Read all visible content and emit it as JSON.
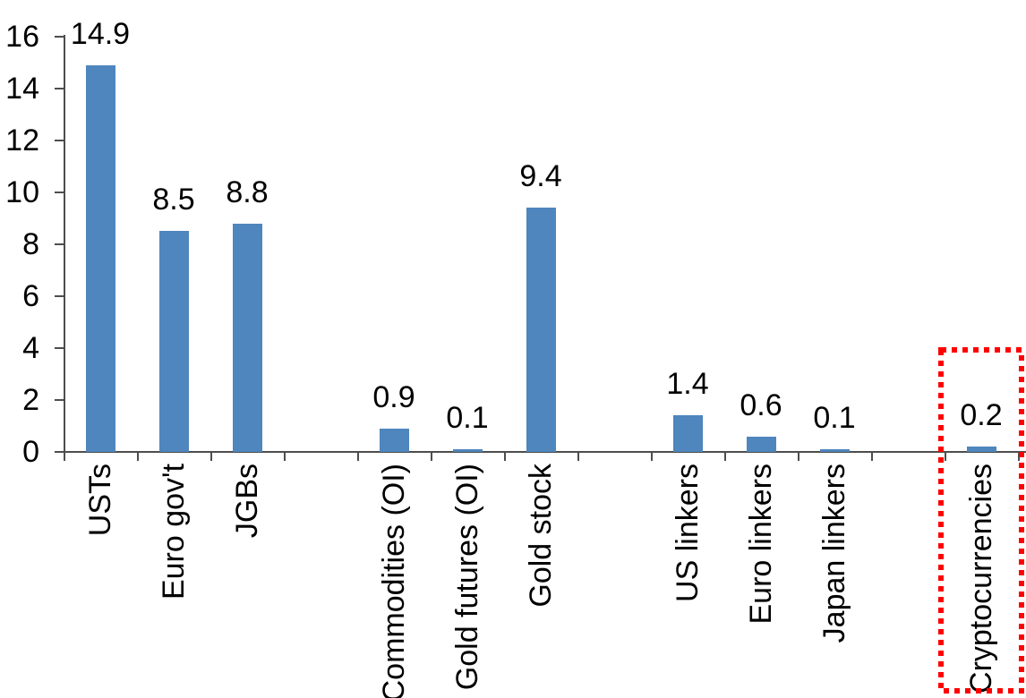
{
  "chart_data": {
    "type": "bar",
    "title": "",
    "xlabel": "",
    "ylabel": "",
    "categories": [
      "USTs",
      "Euro gov't",
      "JGBs",
      "",
      "Commodities (OI)",
      "Gold futures (OI)",
      "Gold stock",
      "",
      "US linkers",
      "Euro linkers",
      "Japan linkers",
      "",
      "Cryptocurrencies"
    ],
    "values": [
      14.9,
      8.5,
      8.8,
      null,
      0.9,
      0.1,
      9.4,
      null,
      1.4,
      0.6,
      0.1,
      null,
      0.2
    ],
    "data_labels": [
      "14.9",
      "8.5",
      "8.8",
      "",
      "0.9",
      "0.1",
      "9.4",
      "",
      "1.4",
      "0.6",
      "0.1",
      "",
      "0.2"
    ],
    "ylim": [
      0,
      16
    ],
    "ytick_labels": [
      "0",
      "2",
      "4",
      "6",
      "8",
      "10",
      "12",
      "14",
      "16"
    ],
    "grid": false,
    "legend_position": "none",
    "colors": {
      "bar": "#4e86bd",
      "axis": "#4d4d4d",
      "text": "#000000",
      "highlight_box": "#ff0000"
    },
    "annotations": {
      "highlight": {
        "category": "Cryptocurrencies",
        "category_index": 12,
        "style": "red-dotted-rectangle"
      }
    }
  }
}
